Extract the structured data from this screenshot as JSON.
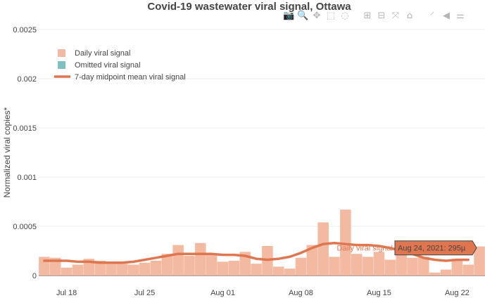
{
  "chart_data": {
    "type": "bar",
    "title": "Covid-19 wastewater viral signal, Ottawa",
    "ylabel": "Normalized viral copies*",
    "xlabel": "",
    "ylim": [
      0,
      0.0025
    ],
    "y_ticks": [
      "0",
      "0.0005",
      "0.001",
      "0.0015",
      "0.002",
      "0.0025"
    ],
    "x_ticks": [
      {
        "label": "Jul 18",
        "date": "2021-07-18"
      },
      {
        "label": "Jul 25",
        "date": "2021-07-25"
      },
      {
        "label": "Aug 01",
        "date": "2021-08-01"
      },
      {
        "label": "Aug 08",
        "date": "2021-08-08"
      },
      {
        "label": "Aug 15",
        "date": "2021-08-15"
      },
      {
        "label": "Aug 22",
        "date": "2021-08-22"
      }
    ],
    "xlim": [
      "2021-07-16",
      "2021-08-24"
    ],
    "legend": {
      "position": "top-left",
      "entries": [
        {
          "label": "Daily viral signal",
          "kind": "square",
          "color": "#f4b9a1"
        },
        {
          "label": "Omitted viral signal",
          "kind": "square",
          "color": "#7fc1c3"
        },
        {
          "label": "7-day midpoint mean viral signal",
          "kind": "line",
          "color": "#e0764f"
        }
      ]
    },
    "series": [
      {
        "name": "Daily viral signal",
        "kind": "bar",
        "color": "#f4b9a1",
        "x": [
          "2021-07-16",
          "2021-07-17",
          "2021-07-18",
          "2021-07-19",
          "2021-07-20",
          "2021-07-21",
          "2021-07-22",
          "2021-07-23",
          "2021-07-24",
          "2021-07-25",
          "2021-07-26",
          "2021-07-27",
          "2021-07-28",
          "2021-07-29",
          "2021-07-30",
          "2021-07-31",
          "2021-08-01",
          "2021-08-02",
          "2021-08-03",
          "2021-08-04",
          "2021-08-05",
          "2021-08-06",
          "2021-08-07",
          "2021-08-08",
          "2021-08-09",
          "2021-08-10",
          "2021-08-11",
          "2021-08-12",
          "2021-08-13",
          "2021-08-14",
          "2021-08-15",
          "2021-08-16",
          "2021-08-17",
          "2021-08-18",
          "2021-08-19",
          "2021-08-20",
          "2021-08-21",
          "2021-08-22",
          "2021-08-23",
          "2021-08-24"
        ],
        "values": [
          0.00019,
          0.00018,
          8e-05,
          0.00011,
          0.00017,
          0.00015,
          0.00014,
          0.00012,
          0.00011,
          0.00013,
          0.00015,
          0.00022,
          0.00031,
          0.0002,
          0.00033,
          0.00021,
          0.00014,
          0.00015,
          0.00024,
          0.00012,
          0.0003,
          9e-05,
          7e-05,
          0.00018,
          0.00031,
          0.00054,
          0.00019,
          0.00067,
          0.00022,
          0.00019,
          0.00024,
          0.00016,
          0.00021,
          0.00018,
          0.00019,
          3e-05,
          6e-05,
          0.00017,
          0.00011,
          0.000295
        ]
      },
      {
        "name": "7-day midpoint mean viral signal",
        "kind": "line",
        "color": "#e0764f",
        "x": [
          "2021-07-16",
          "2021-07-17",
          "2021-07-18",
          "2021-07-19",
          "2021-07-20",
          "2021-07-21",
          "2021-07-22",
          "2021-07-23",
          "2021-07-24",
          "2021-07-25",
          "2021-07-26",
          "2021-07-27",
          "2021-07-28",
          "2021-07-29",
          "2021-07-30",
          "2021-07-31",
          "2021-08-01",
          "2021-08-02",
          "2021-08-03",
          "2021-08-04",
          "2021-08-05",
          "2021-08-06",
          "2021-08-07",
          "2021-08-08",
          "2021-08-09",
          "2021-08-10",
          "2021-08-11",
          "2021-08-12",
          "2021-08-13",
          "2021-08-14",
          "2021-08-15",
          "2021-08-16",
          "2021-08-17",
          "2021-08-18",
          "2021-08-19",
          "2021-08-20",
          "2021-08-21",
          "2021-08-22",
          "2021-08-23"
        ],
        "values": [
          0.00015,
          0.00015,
          0.00015,
          0.00014,
          0.00014,
          0.00013,
          0.00013,
          0.00013,
          0.00014,
          0.00016,
          0.00018,
          0.0002,
          0.00022,
          0.00022,
          0.00022,
          0.00022,
          0.00021,
          0.00021,
          0.0002,
          0.00017,
          0.00016,
          0.00017,
          0.00019,
          0.00023,
          0.00028,
          0.00032,
          0.00033,
          0.00032,
          0.00031,
          0.00031,
          0.0003,
          0.00028,
          0.00025,
          0.00022,
          0.00018,
          0.00016,
          0.00015,
          0.00016,
          0.00016
        ]
      }
    ],
    "hover": {
      "label": "Daily viral signal",
      "text": "Aug 24, 2021: 295µ"
    }
  },
  "modebar": {
    "icons": [
      "camera-icon",
      "zoom-icon",
      "pan-icon",
      "box-select-icon",
      "lasso-icon",
      "zoom-in-icon",
      "zoom-out-icon",
      "autoscale-icon",
      "reset-axes-icon",
      "spike-lines-icon",
      "hover-closest-icon",
      "hover-compare-icon"
    ],
    "glyphs": [
      "📷",
      "🔍",
      "✥",
      "⬚",
      "◌",
      "⊞",
      "⊟",
      "⤧",
      "⌂",
      "⸍",
      "◀",
      "⚌"
    ]
  }
}
